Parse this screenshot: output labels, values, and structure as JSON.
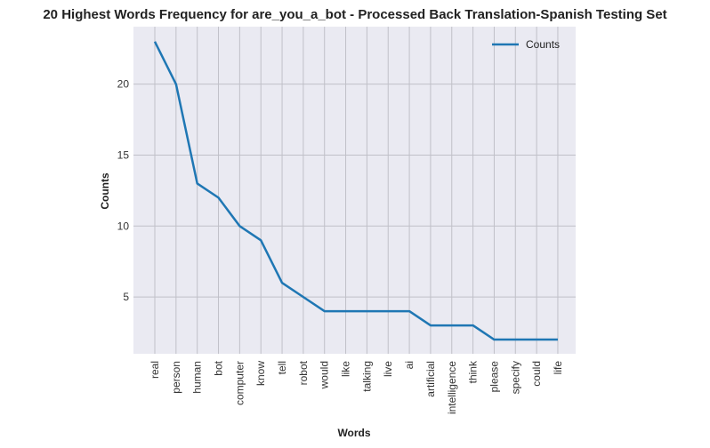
{
  "chart_data": {
    "type": "line",
    "title": "20 Highest Words Frequency for are_you_a_bot - Processed Back Translation-Spanish Testing Set",
    "xlabel": "Words",
    "ylabel": "Counts",
    "categories": [
      "real",
      "person",
      "human",
      "bot",
      "computer",
      "know",
      "tell",
      "robot",
      "would",
      "like",
      "talking",
      "live",
      "ai",
      "artificial",
      "intelligence",
      "think",
      "please",
      "specify",
      "could",
      "life"
    ],
    "series": [
      {
        "name": "Counts",
        "values": [
          23,
          20,
          13,
          12,
          10,
          9,
          6,
          5,
          4,
          4,
          4,
          4,
          4,
          3,
          3,
          3,
          2,
          2,
          2,
          2
        ]
      }
    ],
    "ylim": [
      1,
      24.05
    ],
    "yticks": [
      5,
      10,
      15,
      20
    ],
    "grid": true,
    "legend_position": "top-right",
    "colors": {
      "line": "#1f77b4",
      "plot_background": "#eaeaf2",
      "grid": "#c0c0c8"
    }
  }
}
